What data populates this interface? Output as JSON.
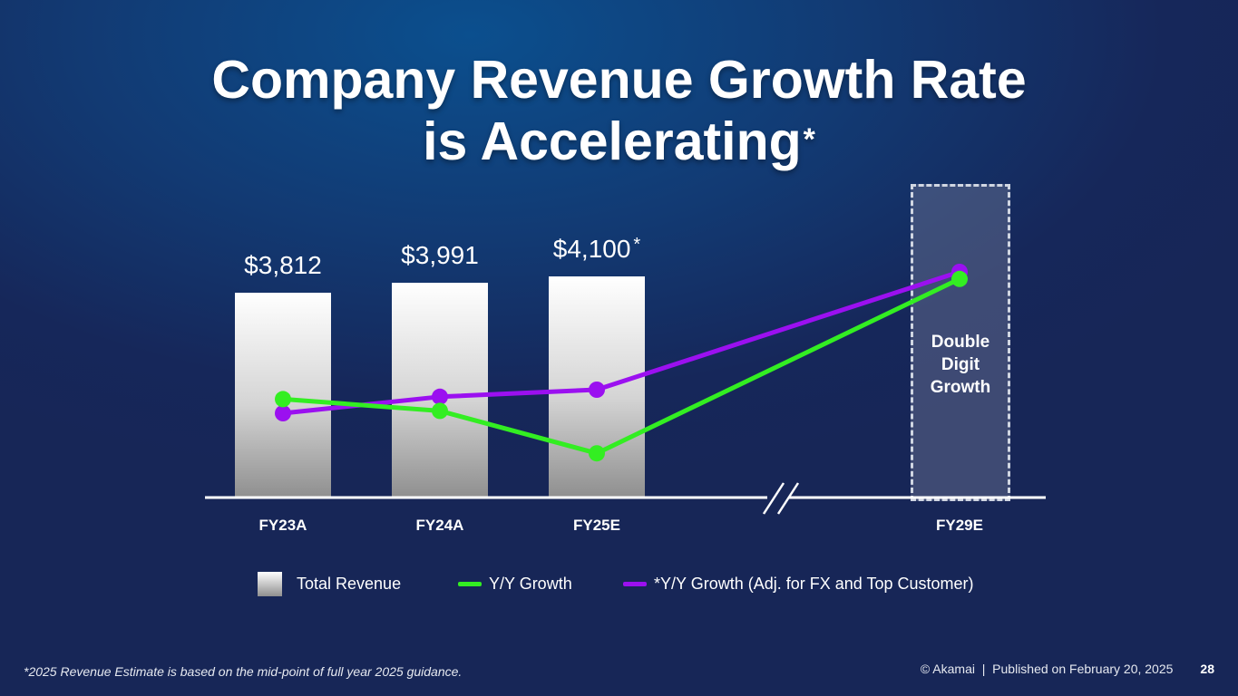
{
  "slide": {
    "title_line1": "Company Revenue Growth Rate",
    "title_line2": "is Accelerating",
    "title_star": "*",
    "footnote": "*2025 Revenue Estimate is based on the mid-point of full year 2025 guidance.",
    "footer": "© Akamai  |  Published on February 20, 2025",
    "page_number": "28"
  },
  "chart_data": {
    "type": "bar",
    "categories": [
      "FY23A",
      "FY24A",
      "FY25E",
      "FY29E"
    ],
    "series": [
      {
        "name": "Total Revenue",
        "kind": "bar",
        "values": [
          3812,
          3991,
          4100,
          null
        ],
        "labels": [
          "$3,812",
          "$3,991",
          "$4,100",
          ""
        ],
        "label_stars": [
          "",
          "",
          "*",
          ""
        ]
      },
      {
        "name": "Y/Y Growth",
        "kind": "line",
        "relative_level": [
          0.46,
          0.41,
          0.23,
          0.97
        ],
        "color": "#33ee22"
      },
      {
        "name": "*Y/Y Growth (Adj. for FX and Top Customer)",
        "kind": "line",
        "relative_level": [
          0.4,
          0.47,
          0.5,
          1.0
        ],
        "color": "#9b10f0"
      }
    ],
    "bar_ylim": [
      0,
      4900
    ],
    "axis_break": true,
    "projection_label": "Double Digit Growth",
    "projection_category": "FY29E",
    "legend_position": "bottom"
  }
}
